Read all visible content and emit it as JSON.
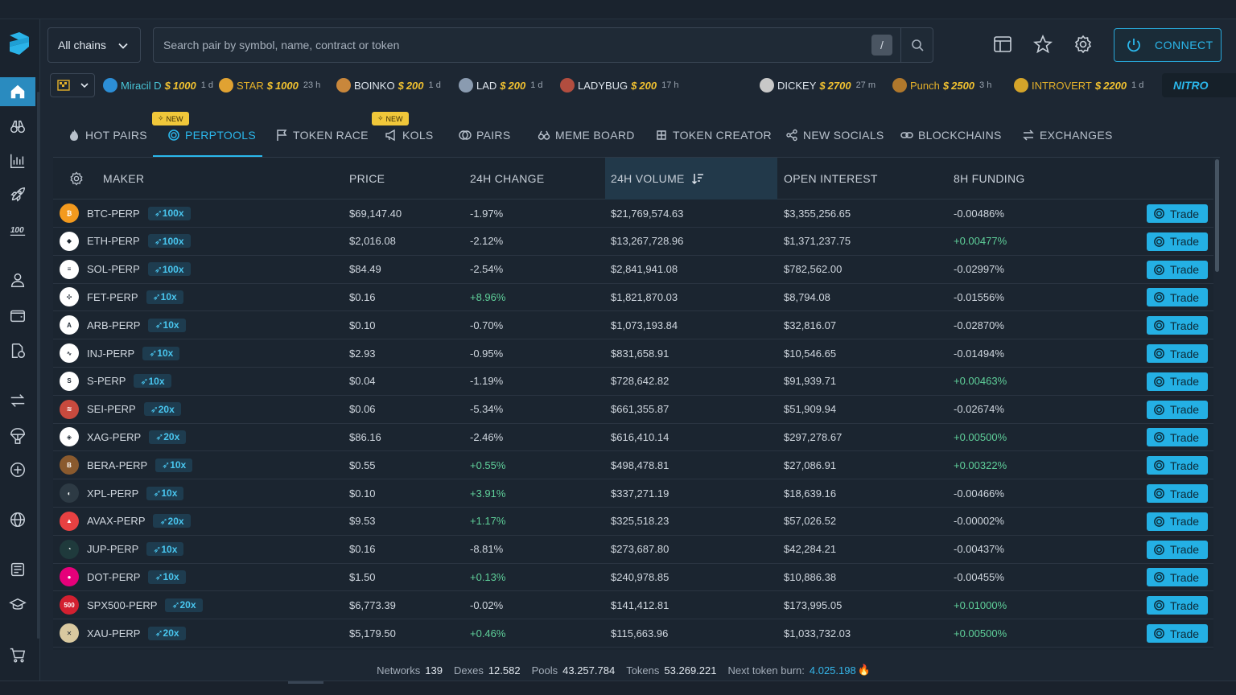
{
  "header": {
    "chain_select": "All chains",
    "search_placeholder": "Search pair by symbol, name, contract or token",
    "slash_key": "/",
    "connect_label": "CONNECT"
  },
  "ticker": [
    {
      "name": "Miracil D",
      "amount": "1000",
      "age": "1 d",
      "style": "teal",
      "color": "#2c8ed6"
    },
    {
      "name": "STAR",
      "amount": "1000",
      "age": "23 h",
      "style": "gold",
      "color": "#e0a232"
    },
    {
      "name": "BOINKO",
      "amount": "200",
      "age": "1 d",
      "style": "",
      "color": "#c9873b"
    },
    {
      "name": "LAD",
      "amount": "200",
      "age": "1 d",
      "style": "",
      "color": "#8a9bb0"
    },
    {
      "name": "LADYBUG",
      "amount": "200",
      "age": "17 h",
      "style": "",
      "color": "#b24d3f"
    },
    {
      "name": "DICKEY",
      "amount": "2700",
      "age": "27 m",
      "style": "",
      "color": "#c8c8c8"
    },
    {
      "name": "Punch",
      "amount": "2500",
      "age": "3 h",
      "style": "gold",
      "color": "#b0782c"
    },
    {
      "name": "INTROVERT",
      "amount": "2200",
      "age": "1 d",
      "style": "gold",
      "color": "#d4a42a"
    }
  ],
  "nitro_label": "NITRO",
  "tabs": [
    {
      "label": "HOT PAIRS",
      "icon": "flame-icon"
    },
    {
      "label": "PERPTOOLS",
      "icon": "perp-icon",
      "badge": "NEW",
      "active": true
    },
    {
      "label": "TOKEN RACE",
      "icon": "flag-icon"
    },
    {
      "label": "KOLS",
      "icon": "megaphone-icon",
      "badge": "NEW"
    },
    {
      "label": "PAIRS",
      "icon": "pairs-icon"
    },
    {
      "label": "MEME BOARD",
      "icon": "binoculars-icon"
    },
    {
      "label": "TOKEN CREATOR",
      "icon": "creator-icon"
    },
    {
      "label": "NEW SOCIALS",
      "icon": "share-icon"
    },
    {
      "label": "BLOCKCHAINS",
      "icon": "chain-icon"
    },
    {
      "label": "EXCHANGES",
      "icon": "exchange-icon"
    }
  ],
  "table": {
    "headers": {
      "maker": "MAKER",
      "price": "PRICE",
      "change": "24H CHANGE",
      "volume": "24H VOLUME",
      "oi": "OPEN INTEREST",
      "funding": "8H FUNDING"
    },
    "trade_label": "Trade",
    "rows": [
      {
        "pair": "BTC-PERP",
        "lev": "100x",
        "price": "$69,147.40",
        "change": "-1.97%",
        "volume": "$21,769,574.63",
        "oi": "$3,355,256.65",
        "funding": "-0.00486%",
        "coin_color": "#f39a1e",
        "coin_text": "₿"
      },
      {
        "pair": "ETH-PERP",
        "lev": "100x",
        "price": "$2,016.08",
        "change": "-2.12%",
        "volume": "$13,267,728.96",
        "oi": "$1,371,237.75",
        "funding": "+0.00477%",
        "coin_color": "#ffffff",
        "coin_text": "◆"
      },
      {
        "pair": "SOL-PERP",
        "lev": "100x",
        "price": "$84.49",
        "change": "-2.54%",
        "volume": "$2,841,941.08",
        "oi": "$782,562.00",
        "funding": "-0.02997%",
        "coin_color": "#ffffff",
        "coin_text": "≡"
      },
      {
        "pair": "FET-PERP",
        "lev": "10x",
        "price": "$0.16",
        "change": "+8.96%",
        "volume": "$1,821,870.03",
        "oi": "$8,794.08",
        "funding": "-0.01556%",
        "coin_color": "#ffffff",
        "coin_text": "✣"
      },
      {
        "pair": "ARB-PERP",
        "lev": "10x",
        "price": "$0.10",
        "change": "-0.70%",
        "volume": "$1,073,193.84",
        "oi": "$32,816.07",
        "funding": "-0.02870%",
        "coin_color": "#ffffff",
        "coin_text": "A"
      },
      {
        "pair": "INJ-PERP",
        "lev": "10x",
        "price": "$2.93",
        "change": "-0.95%",
        "volume": "$831,658.91",
        "oi": "$10,546.65",
        "funding": "-0.01494%",
        "coin_color": "#ffffff",
        "coin_text": "∿"
      },
      {
        "pair": "S-PERP",
        "lev": "10x",
        "price": "$0.04",
        "change": "-1.19%",
        "volume": "$728,642.82",
        "oi": "$91,939.71",
        "funding": "+0.00463%",
        "coin_color": "#ffffff",
        "coin_text": "S"
      },
      {
        "pair": "SEI-PERP",
        "lev": "20x",
        "price": "$0.06",
        "change": "-5.34%",
        "volume": "$661,355.87",
        "oi": "$51,909.94",
        "funding": "-0.02674%",
        "coin_color": "#c84a3e",
        "coin_text": "≋"
      },
      {
        "pair": "XAG-PERP",
        "lev": "20x",
        "price": "$86.16",
        "change": "-2.46%",
        "volume": "$616,410.14",
        "oi": "$297,278.67",
        "funding": "+0.00500%",
        "coin_color": "#ffffff",
        "coin_text": "◈"
      },
      {
        "pair": "BERA-PERP",
        "lev": "10x",
        "price": "$0.55",
        "change": "+0.55%",
        "volume": "$498,478.81",
        "oi": "$27,086.91",
        "funding": "+0.00322%",
        "coin_color": "#8a5a2e",
        "coin_text": "B"
      },
      {
        "pair": "XPL-PERP",
        "lev": "10x",
        "price": "$0.10",
        "change": "+3.91%",
        "volume": "$337,271.19",
        "oi": "$18,639.16",
        "funding": "-0.00466%",
        "coin_color": "#2d3a44",
        "coin_text": "◐"
      },
      {
        "pair": "AVAX-PERP",
        "lev": "20x",
        "price": "$9.53",
        "change": "+1.17%",
        "volume": "$325,518.23",
        "oi": "$57,026.52",
        "funding": "-0.00002%",
        "coin_color": "#e84142",
        "coin_text": "▲"
      },
      {
        "pair": "JUP-PERP",
        "lev": "10x",
        "price": "$0.16",
        "change": "-8.81%",
        "volume": "$273,687.80",
        "oi": "$42,284.21",
        "funding": "-0.00437%",
        "coin_color": "#1f3a3c",
        "coin_text": "◔"
      },
      {
        "pair": "DOT-PERP",
        "lev": "10x",
        "price": "$1.50",
        "change": "+0.13%",
        "volume": "$240,978.85",
        "oi": "$10,886.38",
        "funding": "-0.00455%",
        "coin_color": "#e6007a",
        "coin_text": "●"
      },
      {
        "pair": "SPX500-PERP",
        "lev": "20x",
        "price": "$6,773.39",
        "change": "-0.02%",
        "volume": "$141,412.81",
        "oi": "$173,995.05",
        "funding": "+0.01000%",
        "coin_color": "#d32030",
        "coin_text": "500"
      },
      {
        "pair": "XAU-PERP",
        "lev": "20x",
        "price": "$5,179.50",
        "change": "+0.46%",
        "volume": "$115,663.96",
        "oi": "$1,033,732.03",
        "funding": "+0.00500%",
        "coin_color": "#d9c9a0",
        "coin_text": "✕"
      }
    ]
  },
  "footer": {
    "networks_label": "Networks",
    "networks": "139",
    "dexes_label": "Dexes",
    "dexes": "12.582",
    "pools_label": "Pools",
    "pools": "43.257.784",
    "tokens_label": "Tokens",
    "tokens": "53.269.221",
    "burn_label": "Next token burn:",
    "burn": "4.025.198"
  }
}
